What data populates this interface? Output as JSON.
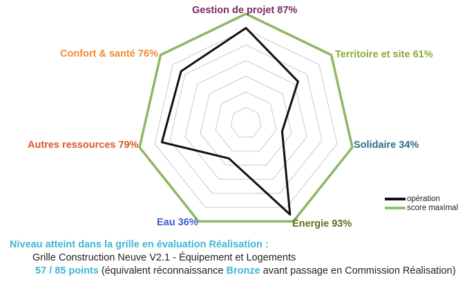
{
  "chart_data": {
    "type": "radar",
    "axes": [
      {
        "name": "Gestion de projet",
        "value_label": "87%",
        "color": "#7a2a63"
      },
      {
        "name": "Territoire et site",
        "value_label": "61%",
        "color": "#8aab3a"
      },
      {
        "name": "Solidaire",
        "value_label": "34%",
        "color": "#2f6f86"
      },
      {
        "name": "Énergie",
        "value_label": "93%",
        "color": "#6b6a1f"
      },
      {
        "name": "Eau",
        "value_label": "36%",
        "color": "#3d5bd0"
      },
      {
        "name": "Autres ressources",
        "value_label": "79%",
        "color": "#d85a2a"
      },
      {
        "name": "Confort & santé",
        "value_label": "76%",
        "color": "#f08a2e"
      }
    ],
    "series": [
      {
        "name": "opération",
        "color": "#111111",
        "values": [
          87,
          61,
          34,
          93,
          36,
          79,
          76
        ]
      },
      {
        "name": "score maximal",
        "color": "#8fb764",
        "values": [
          100,
          100,
          100,
          100,
          100,
          100,
          100
        ]
      }
    ],
    "grid_levels": 7,
    "range": [
      0,
      100
    ],
    "legend_position": "bottom-right"
  },
  "caption": {
    "heading": "Niveau atteint dans la grille en évaluation Réalisation :",
    "grid_line": "Grille Construction Neuve V2.1 - Équipement et Logements",
    "points": "57 / 85 points",
    "equivalence_prefix": "(équivalent réconnaissance",
    "level": "Bronze",
    "equivalence_suffix": "avant passage en Commission Réalisation)"
  }
}
